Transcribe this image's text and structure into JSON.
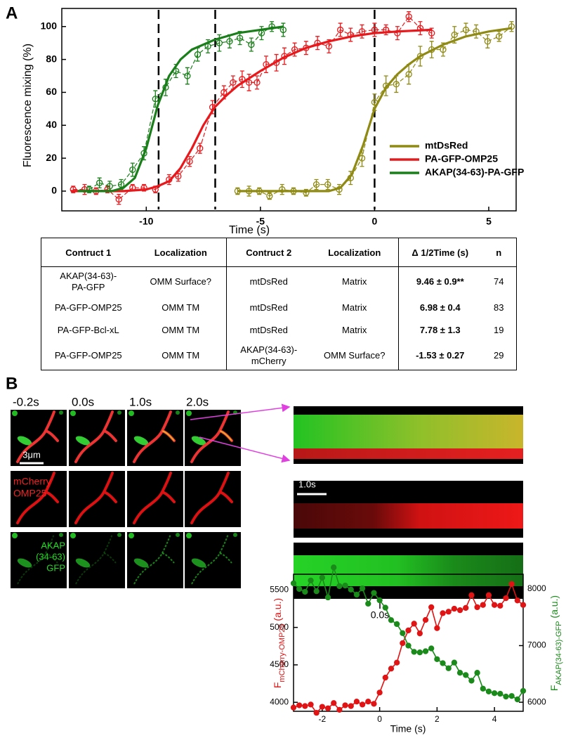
{
  "panels": {
    "a": "A",
    "b": "B"
  },
  "chart_data": [
    {
      "type": "line",
      "xlabel": "Time (s)",
      "ylabel": "Fluorescence mixing (%)",
      "xlim": [
        -13.7,
        6.2
      ],
      "ylim": [
        -12,
        111
      ],
      "xticks": [
        -10,
        -5,
        0,
        5
      ],
      "yticks": [
        0,
        20,
        40,
        60,
        80,
        100
      ],
      "vlines": [
        -9.46,
        -6.98,
        0
      ],
      "legend": "right",
      "marker_style": "open",
      "connector": "dashed",
      "series": [
        {
          "name": "mtDsRed",
          "color": "#8f8a14",
          "x": [
            -6.0,
            -5.5,
            -5.05,
            -4.6,
            -4.05,
            -3.55,
            -3.0,
            -2.55,
            -2.05,
            -1.55,
            -1.05,
            -0.55,
            0,
            0.5,
            0.95,
            1.5,
            2.0,
            2.5,
            3.0,
            3.5,
            4.0,
            4.45,
            4.95,
            5.45,
            6.0
          ],
          "values": [
            0,
            0,
            0,
            -3,
            1,
            0,
            -1,
            4,
            4,
            1,
            8,
            20,
            54,
            64,
            65,
            71,
            82,
            86,
            86,
            95,
            98,
            97,
            91,
            94,
            100
          ],
          "errors": [
            2,
            3,
            2,
            2,
            3,
            2,
            2,
            3,
            3,
            3,
            4,
            5,
            5,
            6,
            5,
            6,
            6,
            5,
            4,
            5,
            4,
            4,
            4,
            3,
            3
          ],
          "fit_x": [
            -6,
            -2,
            -1.5,
            -1,
            -0.5,
            0,
            0.5,
            1,
            1.5,
            2,
            3,
            4,
            5,
            6
          ],
          "fit_values": [
            0,
            0,
            2,
            10,
            28,
            50,
            63,
            71,
            77,
            82,
            89,
            94,
            97,
            99
          ]
        },
        {
          "name": "PA-GFP-OMP25",
          "color": "#e8191c",
          "x": [
            -13.2,
            -12.7,
            -12.2,
            -11.7,
            -11.2,
            -10.6,
            -10.1,
            -9.6,
            -9.0,
            -8.6,
            -8.1,
            -7.65,
            -7.1,
            -6.6,
            -6.2,
            -5.8,
            -5.5,
            -5.15,
            -4.75,
            -4.3,
            -3.95,
            -3.5,
            -3.0,
            -2.5,
            -2.0,
            -1.5,
            -1.05,
            -0.55,
            0,
            0.5,
            1.0,
            1.5,
            2.0,
            2.5
          ],
          "values": [
            1,
            1,
            0,
            1,
            -5,
            2,
            2,
            1,
            7,
            9,
            18,
            26,
            51,
            60,
            66,
            68,
            66,
            66,
            77,
            78,
            82,
            86,
            87,
            90,
            88,
            98,
            95,
            97,
            98,
            98,
            96,
            106,
            99,
            96
          ],
          "errors": [
            2,
            3,
            2,
            2,
            3,
            2,
            2,
            2,
            3,
            3,
            3,
            3,
            4,
            4,
            4,
            5,
            5,
            4,
            5,
            5,
            5,
            4,
            4,
            4,
            4,
            4,
            4,
            4,
            4,
            3,
            4,
            3,
            4,
            3
          ],
          "fit_x": [
            -13.3,
            -11,
            -10,
            -9.5,
            -9,
            -8.5,
            -8,
            -7.5,
            -7,
            -6.5,
            -6,
            -5,
            -4,
            -3,
            -2,
            -1,
            0,
            1,
            2.5
          ],
          "fit_values": [
            0,
            0,
            1,
            3,
            6,
            14,
            26,
            40,
            51,
            58,
            64,
            73,
            81,
            87,
            91,
            94,
            96,
            97,
            98
          ]
        },
        {
          "name": "AKAP(34-63)-PA-GFP",
          "color": "#1a7f1a",
          "x": [
            -12.5,
            -12.05,
            -11.6,
            -11.1,
            -10.6,
            -10.1,
            -9.6,
            -9.15,
            -8.7,
            -8.2,
            -7.75,
            -7.3,
            -6.8,
            -6.35,
            -5.9,
            -5.4,
            -4.95,
            -4.5,
            -4.0
          ],
          "values": [
            1,
            5,
            3,
            4,
            13,
            23,
            56,
            63,
            73,
            70,
            83,
            88,
            90,
            91,
            93,
            89,
            96,
            100,
            98
          ],
          "errors": [
            2,
            3,
            3,
            3,
            4,
            4,
            5,
            5,
            4,
            5,
            4,
            4,
            5,
            4,
            4,
            4,
            4,
            3,
            4
          ],
          "fit_x": [
            -13,
            -11.5,
            -11,
            -10.5,
            -10,
            -9.5,
            -9,
            -8.5,
            -8,
            -7,
            -6,
            -5,
            -4
          ],
          "fit_values": [
            0,
            0,
            2,
            8,
            26,
            52,
            70,
            80,
            86,
            92,
            96,
            98,
            100
          ]
        }
      ]
    },
    {
      "type": "line",
      "xlabel": "Time (s)",
      "ylabel": {
        "main": "F",
        "sub": "mCherry-OMP25",
        "unit": " (a.u.)"
      },
      "y2label": {
        "main": "F",
        "sub": "AKAP(34-63)-GFP",
        "unit": " (a.u.)"
      },
      "xlim": [
        -3,
        5
      ],
      "ylim": [
        3880,
        5710
      ],
      "y2lim": [
        5840,
        8260
      ],
      "xticks": [
        -2,
        0,
        2,
        4
      ],
      "yticks": [
        4000,
        4500,
        5000,
        5500
      ],
      "y2ticks": [
        6000,
        7000,
        8000
      ],
      "marker_style": "filled",
      "connector": "solid",
      "x": [
        -3,
        -2.8,
        -2.6,
        -2.4,
        -2.2,
        -2,
        -1.8,
        -1.6,
        -1.4,
        -1.2,
        -1,
        -0.8,
        -0.6,
        -0.4,
        -0.2,
        0,
        0.2,
        0.4,
        0.6,
        0.8,
        1,
        1.2,
        1.4,
        1.6,
        1.8,
        2,
        2.2,
        2.4,
        2.6,
        2.8,
        3,
        3.2,
        3.4,
        3.6,
        3.8,
        4,
        4.2,
        4.4,
        4.6,
        4.8,
        5
      ],
      "series": [
        {
          "color": "#e01414",
          "axis": "y",
          "values": [
            3930,
            3960,
            3950,
            3970,
            3860,
            3940,
            3920,
            3990,
            3900,
            3960,
            3950,
            4010,
            3970,
            4010,
            3980,
            4130,
            4330,
            4450,
            4530,
            4790,
            4960,
            5050,
            4920,
            5100,
            5270,
            4990,
            5190,
            5210,
            5250,
            5230,
            5260,
            5430,
            5270,
            5300,
            5430,
            5300,
            5290,
            5390,
            5580,
            5360,
            5300
          ]
        },
        {
          "color": "#1a8a1a",
          "axis": "y2",
          "values": [
            8100,
            8000,
            7950,
            8150,
            7960,
            8200,
            7850,
            8380,
            8050,
            8060,
            7990,
            7900,
            8010,
            7740,
            7930,
            7800,
            7670,
            7450,
            7380,
            7220,
            7000,
            6890,
            6880,
            6900,
            6950,
            6760,
            6690,
            6600,
            6700,
            6520,
            6480,
            6380,
            6520,
            6240,
            6190,
            6160,
            6150,
            6100,
            6110,
            6050,
            6200
          ]
        }
      ]
    }
  ],
  "table": {
    "header": [
      "Contruct 1",
      "Localization",
      "Contruct 2",
      "Localization",
      "Δ 1/2Time (s)",
      "n"
    ],
    "rows": [
      [
        "AKAP(34-63)-PA-GFP",
        "OMM Surface?",
        "mtDsRed",
        "Matrix",
        "9.46 ± 0.9**",
        74
      ],
      [
        "PA-GFP-OMP25",
        "OMM TM",
        "mtDsRed",
        "Matrix",
        "6.98 ± 0.4",
        83
      ],
      [
        "PA-GFP-Bcl-xL",
        "OMM TM",
        "mtDsRed",
        "Matrix",
        "7.78 ± 1.3",
        19
      ],
      [
        "PA-GFP-OMP25",
        "OMM TM",
        "AKAP(34-63)-mCherry",
        "OMM Surface?",
        "-1.53 ± 0.27",
        29
      ]
    ]
  },
  "images": {
    "times": [
      "-0.2s",
      "0.0s",
      "1.0s",
      "2.0s"
    ],
    "scale_bar": "3μm",
    "red_channel": [
      "mCherry",
      "OMP25"
    ],
    "green_channel": [
      "AKAP",
      "(34-63)",
      "GFP"
    ]
  },
  "kymograph": {
    "scale_bar": "1.0s",
    "time_label": "0.0s"
  }
}
